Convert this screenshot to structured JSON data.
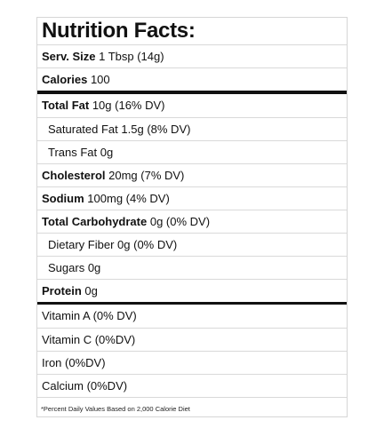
{
  "title": "Nutrition Facts:",
  "serving": {
    "label": "Serv. Size",
    "value": "1 Tbsp (14g)"
  },
  "calories": {
    "label": "Calories",
    "value": "100"
  },
  "nutrients": [
    {
      "label": "Total Fat",
      "value": "10g (16% DV)",
      "bold": true,
      "indent": false
    },
    {
      "label": "Saturated Fat",
      "value": "1.5g (8% DV)",
      "bold": false,
      "indent": true
    },
    {
      "label": "Trans Fat",
      "value": "0g",
      "bold": false,
      "indent": true
    },
    {
      "label": "Cholesterol",
      "value": "20mg (7% DV)",
      "bold": true,
      "indent": false
    },
    {
      "label": "Sodium",
      "value": "100mg (4% DV)",
      "bold": true,
      "indent": false
    },
    {
      "label": "Total Carbohydrate",
      "value": "0g (0% DV)",
      "bold": true,
      "indent": false
    },
    {
      "label": "Dietary Fiber",
      "value": "0g (0% DV)",
      "bold": false,
      "indent": true
    },
    {
      "label": "Sugars",
      "value": "0g",
      "bold": false,
      "indent": true
    },
    {
      "label": "Protein",
      "value": "0g",
      "bold": true,
      "indent": false
    }
  ],
  "vitamins": [
    "Vitamin A (0% DV)",
    "Vitamin C (0%DV)",
    "Iron (0%DV)",
    "Calcium (0%DV)"
  ],
  "footnote": "*Percent Daily Values Based on 2,000 Calorie Diet"
}
